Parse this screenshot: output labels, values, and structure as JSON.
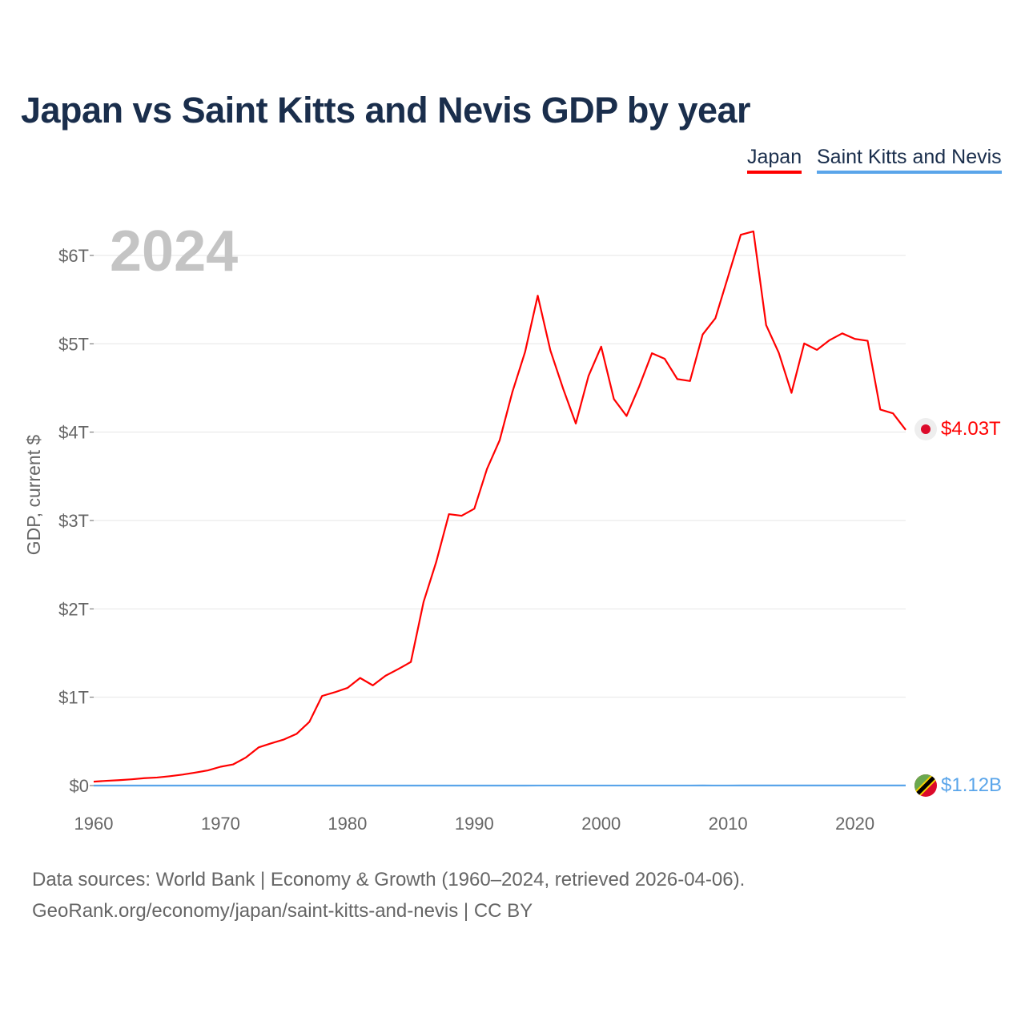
{
  "title": "Japan vs Saint Kitts and Nevis GDP by year",
  "legend": [
    {
      "name": "Japan",
      "color": "#ff0000"
    },
    {
      "name": "Saint Kitts and Nevis",
      "color": "#5aa5ea"
    }
  ],
  "year_label": "2024",
  "end_labels": {
    "japan": "$4.03T",
    "skn": "$1.12B"
  },
  "footer": {
    "line1": "Data sources: World Bank | Economy & Growth (1960–2024, retrieved 2026-04-06).",
    "line2": "GeoRank.org/economy/japan/saint-kitts-and-nevis | CC BY"
  },
  "chart_data": {
    "type": "line",
    "title": "Japan vs Saint Kitts and Nevis GDP by year",
    "xlabel": "",
    "ylabel": "GDP, current $",
    "xlim": [
      1960,
      2024
    ],
    "ylim": [
      0,
      6
    ],
    "y_unit": "trillion USD",
    "x_ticks": [
      1960,
      1970,
      1980,
      1990,
      2000,
      2010,
      2020
    ],
    "x_tick_labels": [
      "1960",
      "1970",
      "1980",
      "1990",
      "2000",
      "2010",
      "2020"
    ],
    "y_ticks": [
      0,
      1,
      2,
      3,
      4,
      5,
      6
    ],
    "y_tick_labels": [
      "$0",
      "$1T",
      "$2T",
      "$3T",
      "$4T",
      "$5T",
      "$6T"
    ],
    "grid": true,
    "legend_position": "top-right",
    "x": [
      1960,
      1961,
      1962,
      1963,
      1964,
      1965,
      1966,
      1967,
      1968,
      1969,
      1970,
      1971,
      1972,
      1973,
      1974,
      1975,
      1976,
      1977,
      1978,
      1979,
      1980,
      1981,
      1982,
      1983,
      1984,
      1985,
      1986,
      1987,
      1988,
      1989,
      1990,
      1991,
      1992,
      1993,
      1994,
      1995,
      1996,
      1997,
      1998,
      1999,
      2000,
      2001,
      2002,
      2003,
      2004,
      2005,
      2006,
      2007,
      2008,
      2009,
      2010,
      2011,
      2012,
      2013,
      2014,
      2015,
      2016,
      2017,
      2018,
      2019,
      2020,
      2021,
      2022,
      2023,
      2024
    ],
    "series": [
      {
        "name": "Japan",
        "color": "#ff0000",
        "values": [
          0.044,
          0.054,
          0.061,
          0.071,
          0.084,
          0.091,
          0.106,
          0.124,
          0.147,
          0.172,
          0.213,
          0.24,
          0.318,
          0.432,
          0.479,
          0.522,
          0.586,
          0.721,
          1.014,
          1.056,
          1.105,
          1.218,
          1.134,
          1.243,
          1.318,
          1.399,
          2.078,
          2.532,
          3.072,
          3.054,
          3.133,
          3.584,
          3.909,
          4.454,
          4.907,
          5.545,
          4.923,
          4.492,
          4.098,
          4.635,
          4.968,
          4.375,
          4.183,
          4.519,
          4.893,
          4.831,
          4.601,
          4.579,
          5.106,
          5.289,
          5.759,
          6.234,
          6.272,
          5.212,
          4.897,
          4.445,
          5.004,
          4.931,
          5.041,
          5.118,
          5.055,
          5.034,
          4.256,
          4.213,
          4.026
        ]
      },
      {
        "name": "Saint Kitts and Nevis",
        "color": "#5aa5ea",
        "values": [
          1e-05,
          1e-05,
          1e-05,
          1e-05,
          1e-05,
          1e-05,
          1e-05,
          1e-05,
          1e-05,
          2e-05,
          2e-05,
          2e-05,
          2e-05,
          3e-05,
          3e-05,
          4e-05,
          4e-05,
          5e-05,
          6e-05,
          7e-05,
          8e-05,
          9e-05,
          9e-05,
          0.0001,
          0.00011,
          0.00012,
          0.00014,
          0.00016,
          0.00018,
          0.0002,
          0.00023,
          0.00025,
          0.00027,
          0.00029,
          0.00032,
          0.00035,
          0.00038,
          0.00041,
          0.00043,
          0.00046,
          0.00048,
          0.00052,
          0.00054,
          0.00055,
          0.00062,
          0.00065,
          0.00072,
          0.00076,
          0.00081,
          0.00077,
          0.00078,
          0.00082,
          0.00081,
          0.00084,
          0.0009,
          0.00093,
          0.00098,
          0.00099,
          0.00104,
          0.00107,
          0.00093,
          0.00097,
          0.00104,
          0.00108,
          0.00112
        ]
      }
    ]
  }
}
